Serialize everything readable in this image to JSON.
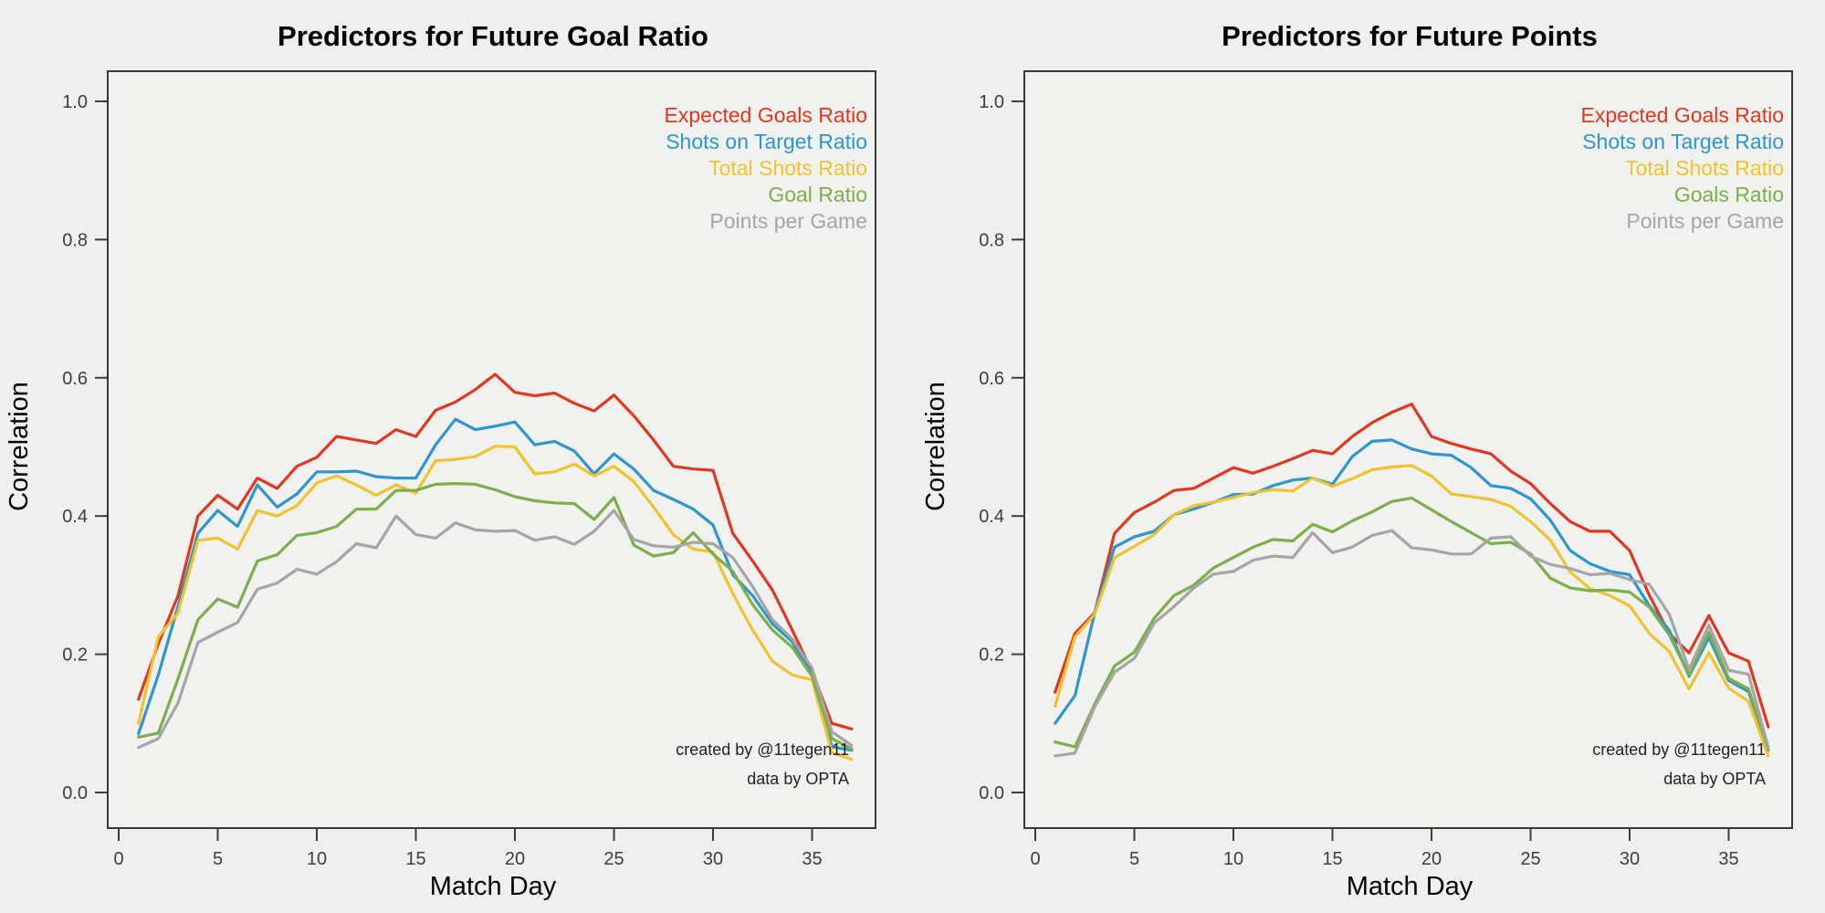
{
  "page": {
    "background": "#EFEFEF"
  },
  "chart_data": [
    {
      "type": "line",
      "title": "Predictors for Future Goal Ratio",
      "xlabel": "Match Day",
      "ylabel": "Correlation",
      "xlim": [
        0,
        38
      ],
      "ylim": [
        0,
        1.05
      ],
      "grid": false,
      "legend_position": "top-right",
      "xticks": [
        0,
        5,
        10,
        15,
        20,
        25,
        30,
        35
      ],
      "ytick_labels": [
        "1.0",
        "0.8",
        "0.6",
        "0.4",
        "0.2",
        "0.0"
      ],
      "x": [
        1,
        2,
        3,
        4,
        5,
        6,
        7,
        8,
        9,
        10,
        11,
        12,
        13,
        14,
        15,
        16,
        17,
        18,
        19,
        20,
        21,
        22,
        23,
        24,
        25,
        26,
        27,
        28,
        29,
        30,
        31,
        32,
        33,
        34,
        35,
        36,
        37
      ],
      "series": [
        {
          "name": "Expected Goals Ratio",
          "color": "#E0381E",
          "values": [
            0.135,
            0.215,
            0.285,
            0.4,
            0.43,
            0.41,
            0.455,
            0.44,
            0.472,
            0.485,
            0.515,
            0.51,
            0.505,
            0.525,
            0.515,
            0.553,
            0.565,
            0.583,
            0.605,
            0.579,
            0.574,
            0.578,
            0.563,
            0.552,
            0.575,
            0.545,
            0.51,
            0.472,
            0.468,
            0.466,
            0.375,
            0.335,
            0.293,
            0.235,
            0.175,
            0.1,
            0.092
          ]
        },
        {
          "name": "Shots on Target Ratio",
          "color": "#2E96CC",
          "values": [
            0.085,
            0.17,
            0.27,
            0.375,
            0.408,
            0.385,
            0.445,
            0.413,
            0.432,
            0.464,
            0.464,
            0.465,
            0.457,
            0.455,
            0.455,
            0.503,
            0.54,
            0.525,
            0.53,
            0.536,
            0.503,
            0.508,
            0.494,
            0.461,
            0.49,
            0.468,
            0.437,
            0.424,
            0.41,
            0.387,
            0.315,
            0.285,
            0.244,
            0.218,
            0.17,
            0.066,
            0.061
          ]
        },
        {
          "name": "Total Shots Ratio",
          "color": "#EFC32E",
          "values": [
            0.1,
            0.225,
            0.26,
            0.365,
            0.368,
            0.352,
            0.408,
            0.4,
            0.415,
            0.448,
            0.458,
            0.445,
            0.43,
            0.445,
            0.433,
            0.48,
            0.482,
            0.486,
            0.501,
            0.5,
            0.461,
            0.464,
            0.475,
            0.458,
            0.472,
            0.45,
            0.413,
            0.373,
            0.352,
            0.348,
            0.288,
            0.235,
            0.19,
            0.17,
            0.163,
            0.058,
            0.048
          ]
        },
        {
          "name": "Goal Ratio",
          "color": "#7BAF4A",
          "values": [
            0.08,
            0.086,
            0.165,
            0.25,
            0.28,
            0.268,
            0.335,
            0.344,
            0.372,
            0.376,
            0.385,
            0.41,
            0.41,
            0.437,
            0.437,
            0.446,
            0.447,
            0.446,
            0.438,
            0.428,
            0.422,
            0.419,
            0.418,
            0.395,
            0.427,
            0.358,
            0.342,
            0.347,
            0.376,
            0.345,
            0.32,
            0.272,
            0.235,
            0.21,
            0.168,
            0.078,
            0.063
          ]
        },
        {
          "name": "Points per Game",
          "color": "#A5A5A5",
          "values": [
            0.065,
            0.078,
            0.13,
            0.217,
            0.232,
            0.246,
            0.294,
            0.303,
            0.323,
            0.316,
            0.334,
            0.36,
            0.354,
            0.4,
            0.373,
            0.368,
            0.39,
            0.38,
            0.378,
            0.379,
            0.365,
            0.37,
            0.359,
            0.378,
            0.408,
            0.366,
            0.357,
            0.355,
            0.362,
            0.36,
            0.34,
            0.298,
            0.25,
            0.222,
            0.18,
            0.088,
            0.068
          ]
        }
      ],
      "annotations": [
        "created by @11tegen11",
        "data by OPTA"
      ]
    },
    {
      "type": "line",
      "title": "Predictors for Future Points",
      "xlabel": "Match Day",
      "ylabel": "Correlation",
      "xlim": [
        0,
        38
      ],
      "ylim": [
        0,
        1.05
      ],
      "grid": false,
      "legend_position": "top-right",
      "xticks": [
        0,
        5,
        10,
        15,
        20,
        25,
        30,
        35
      ],
      "ytick_labels": [
        "1.0",
        "0.8",
        "0.6",
        "0.4",
        "0.2",
        "0.0"
      ],
      "x": [
        1,
        2,
        3,
        4,
        5,
        6,
        7,
        8,
        9,
        10,
        11,
        12,
        13,
        14,
        15,
        16,
        17,
        18,
        19,
        20,
        21,
        22,
        23,
        24,
        25,
        26,
        27,
        28,
        29,
        30,
        31,
        32,
        33,
        34,
        35,
        36,
        37
      ],
      "series": [
        {
          "name": "Expected Goals Ratio",
          "color": "#E0381E",
          "values": [
            0.145,
            0.23,
            0.26,
            0.375,
            0.405,
            0.42,
            0.437,
            0.44,
            0.455,
            0.47,
            0.462,
            0.472,
            0.483,
            0.495,
            0.49,
            0.515,
            0.535,
            0.55,
            0.562,
            0.515,
            0.505,
            0.497,
            0.49,
            0.465,
            0.447,
            0.418,
            0.392,
            0.378,
            0.378,
            0.35,
            0.285,
            0.23,
            0.202,
            0.256,
            0.202,
            0.19,
            0.095
          ]
        },
        {
          "name": "Shots on Target Ratio",
          "color": "#2E96CC",
          "values": [
            0.1,
            0.14,
            0.26,
            0.355,
            0.37,
            0.378,
            0.402,
            0.41,
            0.42,
            0.431,
            0.432,
            0.444,
            0.452,
            0.455,
            0.446,
            0.486,
            0.508,
            0.51,
            0.497,
            0.49,
            0.488,
            0.47,
            0.444,
            0.44,
            0.425,
            0.394,
            0.35,
            0.331,
            0.32,
            0.315,
            0.27,
            0.235,
            0.168,
            0.224,
            0.162,
            0.146,
            0.061
          ]
        },
        {
          "name": "Total Shots Ratio",
          "color": "#EFC32E",
          "values": [
            0.125,
            0.225,
            0.258,
            0.34,
            0.356,
            0.373,
            0.402,
            0.415,
            0.42,
            0.427,
            0.434,
            0.438,
            0.436,
            0.455,
            0.443,
            0.454,
            0.467,
            0.471,
            0.473,
            0.458,
            0.432,
            0.428,
            0.424,
            0.414,
            0.392,
            0.365,
            0.319,
            0.295,
            0.285,
            0.27,
            0.23,
            0.204,
            0.15,
            0.202,
            0.151,
            0.132,
            0.053
          ]
        },
        {
          "name": "Goals Ratio",
          "color": "#7BAF4A",
          "values": [
            0.073,
            0.066,
            0.128,
            0.183,
            0.203,
            0.252,
            0.285,
            0.3,
            0.325,
            0.34,
            0.355,
            0.366,
            0.364,
            0.388,
            0.377,
            0.393,
            0.406,
            0.421,
            0.426,
            0.409,
            0.392,
            0.376,
            0.36,
            0.362,
            0.345,
            0.31,
            0.296,
            0.292,
            0.293,
            0.29,
            0.268,
            0.228,
            0.17,
            0.232,
            0.165,
            0.15,
            0.062
          ]
        },
        {
          "name": "Points per Game",
          "color": "#A5A5A5",
          "values": [
            0.053,
            0.057,
            0.124,
            0.174,
            0.194,
            0.245,
            0.269,
            0.296,
            0.316,
            0.32,
            0.336,
            0.342,
            0.34,
            0.376,
            0.347,
            0.355,
            0.372,
            0.379,
            0.354,
            0.351,
            0.345,
            0.345,
            0.368,
            0.37,
            0.342,
            0.33,
            0.324,
            0.315,
            0.317,
            0.308,
            0.301,
            0.258,
            0.178,
            0.242,
            0.177,
            0.171,
            0.065
          ]
        }
      ],
      "annotations": [
        "created by @11tegen11",
        "data by OPTA"
      ]
    }
  ]
}
